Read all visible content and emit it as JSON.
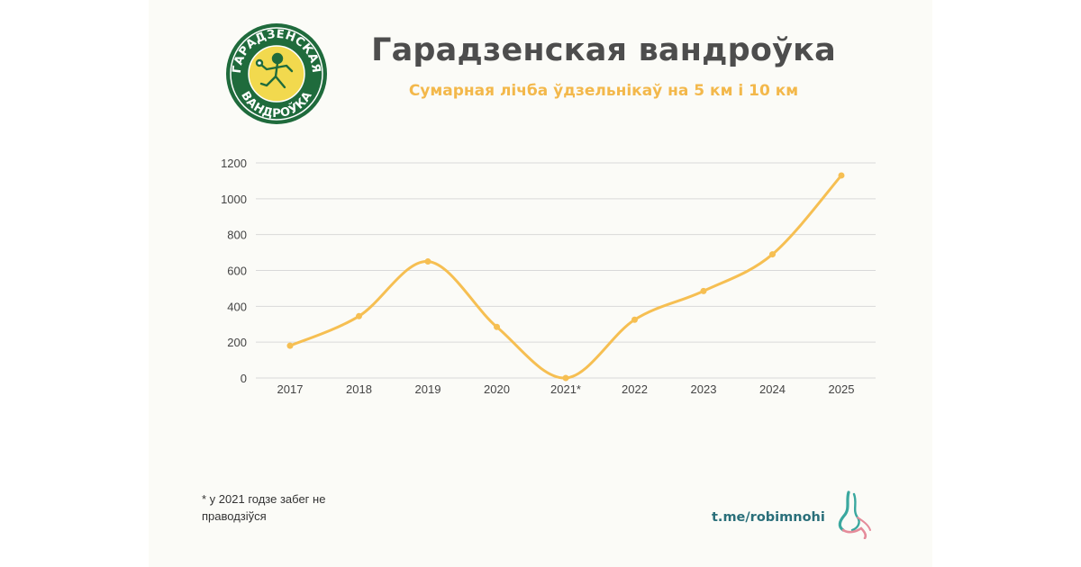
{
  "header": {
    "title": "Гарадзенская вандроўка",
    "subtitle": "Сумарная лічба ўдзельнікаў на 5 км і 10 км"
  },
  "logo": {
    "text_top": "ГАРАДЗЕНСКАЯ",
    "text_bottom": "ВАНДРОЎКА",
    "colors": {
      "ring": "#1f6b3c",
      "fill": "#f2d94e",
      "accent": "#ffffff"
    }
  },
  "chart_data": {
    "type": "line",
    "title": "Сумарная лічба ўдзельнікаў на 5 км і 10 км",
    "categories": [
      "2017",
      "2018",
      "2019",
      "2020",
      "2021*",
      "2022",
      "2023",
      "2024",
      "2025"
    ],
    "values": [
      180,
      345,
      650,
      285,
      0,
      325,
      485,
      690,
      1130
    ],
    "ylim": [
      0,
      1200
    ],
    "yticks": [
      0,
      200,
      400,
      600,
      800,
      1000,
      1200
    ],
    "smooth": true,
    "grid": true,
    "color": "#f6bf52",
    "grid_color": "#d9d9d9",
    "axis_label_color": "#444444"
  },
  "footnote": "* у 2021 годзе забег не праводзіўся",
  "footer": {
    "channel": "t.me/robimnohi",
    "icon": "running-legs-icon",
    "colors": {
      "channel": "#2a6f7a",
      "icon_teal": "#3aa89f",
      "icon_pink": "#e58b9a"
    }
  }
}
